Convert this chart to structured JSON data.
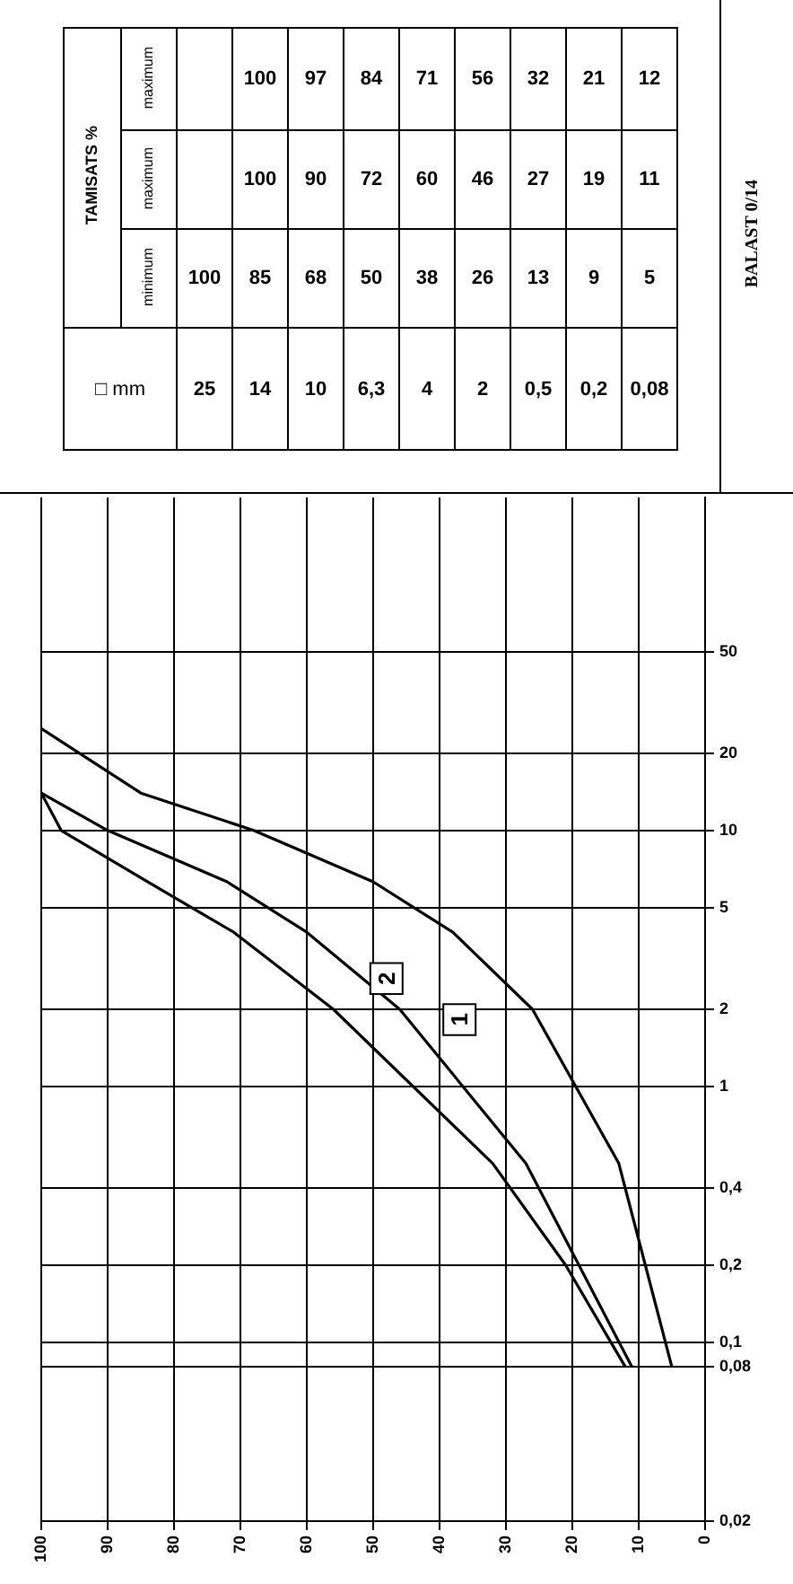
{
  "chart_data": [
    {
      "type": "line",
      "title": "BALAST 0/14",
      "series": [
        {
          "color": "#000000",
          "x": [
            100,
            85,
            68,
            50,
            38,
            26,
            13,
            9,
            5
          ],
          "values": [
            25,
            14,
            10,
            6.3,
            4,
            2,
            0.5,
            0.2,
            0.08
          ]
        },
        {
          "color": "#000000",
          "x": [
            100,
            90,
            72,
            60,
            46,
            27,
            19,
            11
          ],
          "values": [
            14,
            10,
            6.3,
            4,
            2,
            0.5,
            0.2,
            0.08
          ]
        },
        {
          "color": "#000000",
          "x": [
            100,
            97,
            84,
            71,
            56,
            32,
            21,
            12
          ],
          "values": [
            14,
            10,
            6.3,
            4,
            2,
            0.5,
            0.2,
            0.08
          ]
        }
      ],
      "log": "y",
      "xlim": [
        100,
        0
      ],
      "ylim": [
        0.02,
        200
      ],
      "xticks": [
        100,
        90,
        80,
        70,
        60,
        50,
        40,
        30,
        20,
        10,
        0
      ],
      "yticks": [
        {
          "value": 0.02,
          "label": "0,02"
        },
        {
          "value": 0.08,
          "label": "0,08"
        },
        {
          "value": 0.1,
          "label": "0,1"
        },
        {
          "value": 0.2,
          "label": "0,2"
        },
        {
          "value": 0.4,
          "label": "0,4"
        },
        1,
        2,
        5,
        10,
        20,
        50
      ],
      "annotations": [
        "2",
        "1"
      ],
      "grid": true,
      "legend": false,
      "marker": "none",
      "line_style": "solid"
    },
    {
      "type": "heatmap",
      "xlabel": "□ mm",
      "ylabel": "TAMISATS %",
      "categories": [
        "25",
        "14",
        "10",
        "6,3",
        "4",
        "2",
        "0,5",
        "0,2",
        "0,08"
      ],
      "y_categories": [
        "maximum",
        "maximum",
        "minimum"
      ],
      "cells": [
        [
          null,
          100,
          97,
          84,
          71,
          56,
          32,
          21,
          12
        ],
        [
          null,
          100,
          90,
          72,
          60,
          46,
          27,
          19,
          11
        ],
        [
          100,
          85,
          68,
          50,
          38,
          26,
          13,
          9,
          5
        ]
      ],
      "data_labels": true
    }
  ]
}
